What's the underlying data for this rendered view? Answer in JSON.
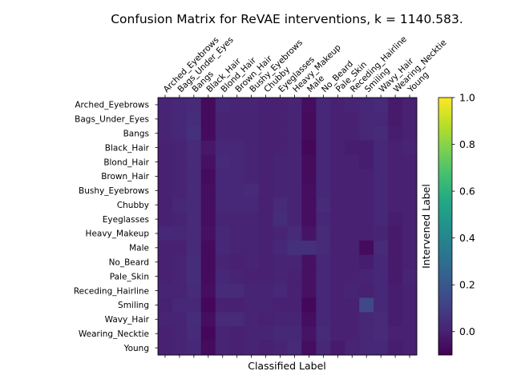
{
  "chart_data": {
    "type": "heatmap",
    "title": "Confusion Matrix for ReVAE interventions, k = 1140.583.",
    "xlabel": "Classified Label",
    "ylabel": "Intervened Label",
    "x_labels": [
      "Arched_Eyebrows",
      "Bags_Under_Eyes",
      "Bangs",
      "Black_Hair",
      "Blond_Hair",
      "Brown_Hair",
      "Bushy_Eyebrows",
      "Chubby",
      "Eyeglasses",
      "Heavy_Makeup",
      "Male",
      "No_Beard",
      "Pale_Skin",
      "Receding_Hairline",
      "Smiling",
      "Wavy_Hair",
      "Wearing_Necktie",
      "Young"
    ],
    "y_labels": [
      "Arched_Eyebrows",
      "Bags_Under_Eyes",
      "Bangs",
      "Black_Hair",
      "Blond_Hair",
      "Brown_Hair",
      "Bushy_Eyebrows",
      "Chubby",
      "Eyeglasses",
      "Heavy_Makeup",
      "Male",
      "No_Beard",
      "Pale_Skin",
      "Receding_Hairline",
      "Smiling",
      "Wavy_Hair",
      "Wearing_Necktie",
      "Young"
    ],
    "colorbar": {
      "colormap": "viridis",
      "vmin": -0.1,
      "vmax": 1.0,
      "ticks": [
        "0.0",
        "0.2",
        "0.4",
        "0.6",
        "0.8",
        "1.0"
      ],
      "tick_values": [
        0.0,
        0.2,
        0.4,
        0.6,
        0.8,
        1.0
      ]
    },
    "values": [
      [
        0.01,
        0.02,
        0.03,
        -0.07,
        0.02,
        0.01,
        0.01,
        0.0,
        0.0,
        0.01,
        -0.06,
        0.02,
        0.0,
        0.01,
        0.02,
        0.03,
        -0.02,
        0.0
      ],
      [
        0.01,
        0.02,
        0.04,
        -0.07,
        0.01,
        0.01,
        0.01,
        0.0,
        0.0,
        0.01,
        -0.07,
        0.02,
        0.0,
        0.0,
        0.02,
        0.02,
        -0.02,
        0.0
      ],
      [
        0.01,
        0.02,
        0.05,
        -0.07,
        0.01,
        0.01,
        0.01,
        0.0,
        0.0,
        0.01,
        -0.07,
        0.02,
        0.0,
        0.0,
        0.02,
        0.03,
        -0.01,
        0.0
      ],
      [
        0.0,
        0.01,
        0.03,
        -0.03,
        0.02,
        0.02,
        0.01,
        0.0,
        0.0,
        0.01,
        -0.08,
        0.02,
        0.0,
        -0.01,
        -0.01,
        0.02,
        0.0,
        0.01
      ],
      [
        0.0,
        0.01,
        0.03,
        -0.05,
        0.03,
        0.02,
        0.01,
        0.0,
        0.01,
        0.01,
        -0.07,
        0.02,
        0.0,
        0.0,
        -0.01,
        0.02,
        0.0,
        0.0
      ],
      [
        0.0,
        0.01,
        0.03,
        -0.07,
        0.02,
        0.02,
        0.01,
        0.0,
        0.01,
        0.01,
        -0.07,
        0.02,
        0.0,
        0.0,
        0.0,
        0.02,
        0.0,
        0.0
      ],
      [
        0.0,
        0.01,
        0.03,
        -0.06,
        0.02,
        0.02,
        0.03,
        0.0,
        0.01,
        0.01,
        -0.06,
        0.02,
        0.0,
        0.0,
        0.0,
        0.02,
        0.0,
        0.0
      ],
      [
        0.0,
        0.02,
        0.03,
        -0.06,
        0.02,
        0.02,
        0.02,
        0.0,
        0.03,
        0.01,
        -0.06,
        0.03,
        0.0,
        0.0,
        0.0,
        0.02,
        0.0,
        0.0
      ],
      [
        0.0,
        0.01,
        0.03,
        -0.06,
        0.01,
        0.01,
        0.01,
        0.0,
        0.04,
        0.01,
        -0.06,
        0.02,
        0.0,
        0.0,
        0.0,
        0.02,
        -0.01,
        0.0
      ],
      [
        0.02,
        0.02,
        0.03,
        -0.05,
        0.02,
        0.01,
        0.01,
        0.0,
        0.01,
        0.03,
        -0.04,
        0.03,
        0.0,
        0.0,
        0.0,
        0.01,
        -0.02,
        0.0
      ],
      [
        0.0,
        0.0,
        0.03,
        -0.07,
        0.02,
        0.01,
        0.01,
        0.0,
        0.02,
        0.05,
        0.05,
        0.03,
        0.0,
        0.0,
        -0.07,
        0.03,
        -0.02,
        0.0
      ],
      [
        0.0,
        0.01,
        0.04,
        -0.07,
        0.01,
        0.0,
        0.01,
        0.0,
        0.01,
        0.01,
        -0.05,
        0.02,
        0.0,
        0.0,
        -0.01,
        0.02,
        -0.02,
        0.0
      ],
      [
        0.0,
        0.01,
        0.04,
        -0.07,
        0.02,
        0.01,
        0.0,
        0.0,
        0.01,
        0.0,
        -0.05,
        0.02,
        0.0,
        0.0,
        0.01,
        0.02,
        -0.02,
        0.01
      ],
      [
        0.01,
        0.01,
        0.03,
        -0.06,
        0.03,
        0.03,
        0.01,
        0.01,
        0.02,
        0.0,
        -0.05,
        0.02,
        0.0,
        0.01,
        0.0,
        0.02,
        -0.01,
        0.0
      ],
      [
        0.0,
        0.02,
        0.02,
        -0.08,
        0.0,
        0.0,
        0.01,
        0.01,
        0.0,
        0.0,
        -0.08,
        0.02,
        0.0,
        0.0,
        0.14,
        0.02,
        -0.01,
        0.0
      ],
      [
        0.01,
        0.01,
        0.04,
        -0.06,
        0.03,
        0.03,
        0.01,
        0.0,
        0.01,
        0.01,
        -0.06,
        0.02,
        0.0,
        0.0,
        0.02,
        0.03,
        -0.01,
        0.0
      ],
      [
        0.0,
        0.01,
        0.03,
        -0.08,
        0.01,
        0.0,
        0.01,
        0.01,
        0.02,
        0.02,
        -0.04,
        0.03,
        0.0,
        0.0,
        0.02,
        0.03,
        0.0,
        0.0
      ],
      [
        0.0,
        0.01,
        0.02,
        -0.07,
        0.01,
        0.0,
        0.01,
        0.0,
        0.01,
        0.03,
        -0.06,
        0.02,
        -0.02,
        0.01,
        0.02,
        0.02,
        -0.01,
        0.0
      ]
    ]
  }
}
